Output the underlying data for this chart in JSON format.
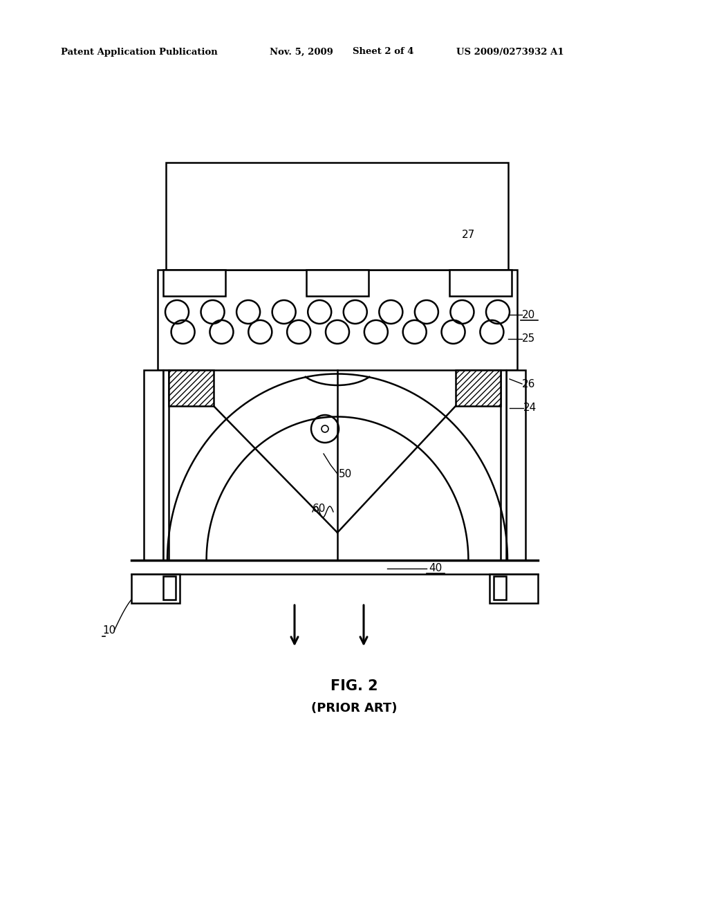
{
  "bg_color": "#ffffff",
  "line_color": "#000000",
  "header_text": "Patent Application Publication",
  "header_date": "Nov. 5, 2009",
  "header_sheet": "Sheet 2 of 4",
  "header_patent": "US 2009/0273932 A1",
  "fig_label": "FIG. 2",
  "fig_sublabel": "(PRIOR ART)"
}
